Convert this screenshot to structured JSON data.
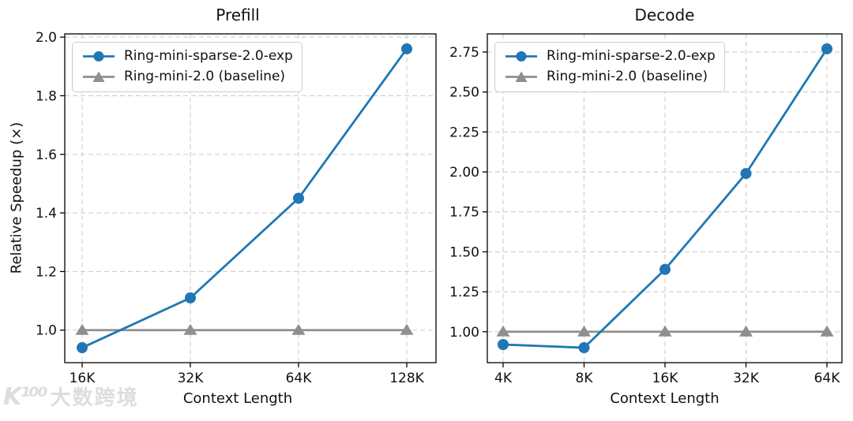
{
  "watermark": {
    "logo": "K¹⁰⁰",
    "text": "大数跨境"
  },
  "colors": {
    "sparse": "#1f77b4",
    "baseline": "#8f8f8f",
    "grid": "#cdcdcd",
    "spine": "#000000"
  },
  "chart_data": [
    {
      "type": "line",
      "title": "Prefill",
      "xlabel": "Context Length",
      "ylabel": "Relative Speedup (×)",
      "x_scale": "log2",
      "categories": [
        "16K",
        "32K",
        "64K",
        "128K"
      ],
      "series": [
        {
          "name": "Ring-mini-sparse-2.0-exp",
          "values": [
            0.94,
            1.11,
            1.45,
            1.96
          ],
          "color": "#1f77b4",
          "marker": "circle"
        },
        {
          "name": "Ring-mini-2.0 (baseline)",
          "values": [
            1.0,
            1.0,
            1.0,
            1.0
          ],
          "color": "#8f8f8f",
          "marker": "triangle"
        }
      ],
      "yticks": [
        "1.0",
        "1.2",
        "1.4",
        "1.6",
        "1.8",
        "2.0"
      ],
      "ylim": [
        0.889,
        2.011
      ],
      "grid": true,
      "legend_position": "upper left"
    },
    {
      "type": "line",
      "title": "Decode",
      "xlabel": "Context Length",
      "ylabel": "",
      "x_scale": "log2",
      "categories": [
        "4K",
        "8K",
        "16K",
        "32K",
        "64K"
      ],
      "series": [
        {
          "name": "Ring-mini-sparse-2.0-exp",
          "values": [
            0.92,
            0.9,
            1.39,
            1.99,
            2.77
          ],
          "color": "#1f77b4",
          "marker": "circle"
        },
        {
          "name": "Ring-mini-2.0 (baseline)",
          "values": [
            1.0,
            1.0,
            1.0,
            1.0,
            1.0
          ],
          "color": "#8f8f8f",
          "marker": "triangle"
        }
      ],
      "yticks": [
        "1.00",
        "1.25",
        "1.50",
        "1.75",
        "2.00",
        "2.25",
        "2.50",
        "2.75"
      ],
      "ylim": [
        0.8065,
        2.8635
      ],
      "grid": true,
      "legend_position": "upper left"
    }
  ]
}
